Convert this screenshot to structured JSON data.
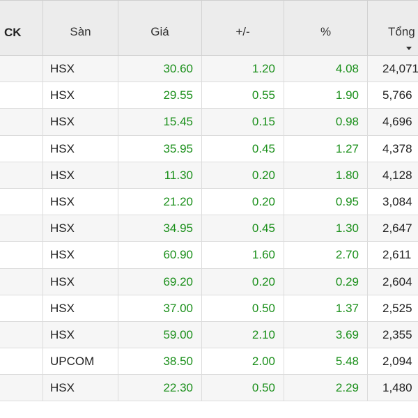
{
  "header": {
    "ck": "CK",
    "san": "Sàn",
    "gia": "Giá",
    "change": "+/-",
    "percent": "%",
    "volume": "Tổng"
  },
  "colors": {
    "up": "#1a8f1a",
    "header_bg": "#ececec"
  },
  "rows": [
    {
      "san": "HSX",
      "gia": "30.60",
      "change": "1.20",
      "percent": "4.08",
      "volume": "24,071"
    },
    {
      "san": "HSX",
      "gia": "29.55",
      "change": "0.55",
      "percent": "1.90",
      "volume": "5,766"
    },
    {
      "san": "HSX",
      "gia": "15.45",
      "change": "0.15",
      "percent": "0.98",
      "volume": "4,696"
    },
    {
      "san": "HSX",
      "gia": "35.95",
      "change": "0.45",
      "percent": "1.27",
      "volume": "4,378"
    },
    {
      "san": "HSX",
      "gia": "11.30",
      "change": "0.20",
      "percent": "1.80",
      "volume": "4,128"
    },
    {
      "san": "HSX",
      "gia": "21.20",
      "change": "0.20",
      "percent": "0.95",
      "volume": "3,084"
    },
    {
      "san": "HSX",
      "gia": "34.95",
      "change": "0.45",
      "percent": "1.30",
      "volume": "2,647"
    },
    {
      "san": "HSX",
      "gia": "60.90",
      "change": "1.60",
      "percent": "2.70",
      "volume": "2,611"
    },
    {
      "san": "HSX",
      "gia": "69.20",
      "change": "0.20",
      "percent": "0.29",
      "volume": "2,604"
    },
    {
      "san": "HSX",
      "gia": "37.00",
      "change": "0.50",
      "percent": "1.37",
      "volume": "2,525"
    },
    {
      "san": "HSX",
      "gia": "59.00",
      "change": "2.10",
      "percent": "3.69",
      "volume": "2,355"
    },
    {
      "san": "UPCOM",
      "gia": "38.50",
      "change": "2.00",
      "percent": "5.48",
      "volume": "2,094"
    },
    {
      "san": "HSX",
      "gia": "22.30",
      "change": "0.50",
      "percent": "2.29",
      "volume": "1,480"
    }
  ]
}
